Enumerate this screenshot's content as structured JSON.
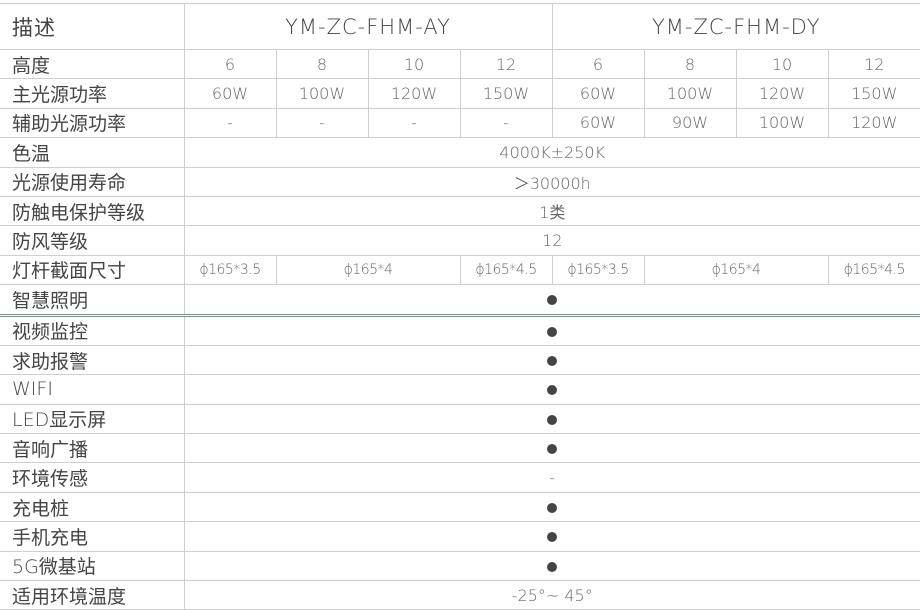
{
  "header": {
    "label": "描述",
    "models": [
      "YM-ZC-FHM-AY",
      "YM-ZC-FHM-DY"
    ]
  },
  "rows": {
    "height": {
      "label": "高度",
      "values": [
        "6",
        "8",
        "10",
        "12",
        "6",
        "8",
        "10",
        "12"
      ]
    },
    "main_power": {
      "label": "主光源功率",
      "values": [
        "60W",
        "100W",
        "120W",
        "150W",
        "60W",
        "100W",
        "120W",
        "150W"
      ]
    },
    "aux_power": {
      "label": "辅助光源功率",
      "values": [
        "-",
        "-",
        "-",
        "-",
        "60W",
        "90W",
        "100W",
        "120W"
      ]
    },
    "color_temp": {
      "label": "色温",
      "value": "4000K±250K"
    },
    "lifetime": {
      "label": "光源使用寿命",
      "value": "＞30000h"
    },
    "shock": {
      "label": "防触电保护等级",
      "value": "1类"
    },
    "wind": {
      "label": "防风等级",
      "value": "12"
    },
    "pole": {
      "label": "灯杆截面尺寸",
      "values": [
        "ϕ165*3.5",
        "ϕ165*4",
        "ϕ165*4.5",
        "ϕ165*3.5",
        "ϕ165*4",
        "ϕ165*4.5"
      ]
    },
    "features": [
      {
        "label": "智慧照明",
        "value": "●"
      },
      {
        "label": "视频监控",
        "value": "●"
      },
      {
        "label": "求助报警",
        "value": "●"
      },
      {
        "label": "WIFI",
        "value": "●"
      },
      {
        "label": "LED显示屏",
        "value": "●"
      },
      {
        "label": "音响广播",
        "value": "●"
      },
      {
        "label": "环境传感",
        "value": "-"
      },
      {
        "label": "充电桩",
        "value": "●"
      },
      {
        "label": "手机充电",
        "value": "●"
      },
      {
        "label": "5G微基站",
        "value": "●"
      }
    ],
    "temp": {
      "label": "适用环境温度",
      "value": "-25°~ 45°"
    }
  }
}
